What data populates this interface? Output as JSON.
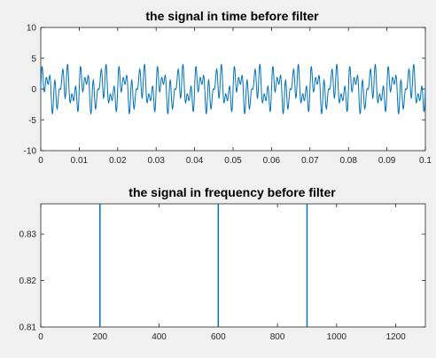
{
  "figure": {
    "background": "#f0f0f0"
  },
  "chart_data": [
    {
      "type": "line",
      "title": "the signal in time before filter",
      "xlabel": "",
      "ylabel": "",
      "xlim": [
        0,
        0.1
      ],
      "ylim": [
        -10,
        10
      ],
      "xticks": [
        0,
        0.01,
        0.02,
        0.03,
        0.04,
        0.05,
        0.06,
        0.07,
        0.08,
        0.09,
        0.1
      ],
      "xtick_labels": [
        "0",
        "0.01",
        "0.02",
        "0.03",
        "0.04",
        "0.05",
        "0.06",
        "0.07",
        "0.08",
        "0.09",
        "0.1"
      ],
      "yticks": [
        -10,
        -5,
        0,
        5,
        10
      ],
      "ytick_labels": [
        "-10",
        "-5",
        "0",
        "5",
        "10"
      ],
      "grid": false,
      "line_color": "#0072bd",
      "series": [
        {
          "components": [
            {
              "amplitude": 1.6,
              "frequency_hz": 200
            },
            {
              "amplitude": 1.6,
              "frequency_hz": 600
            },
            {
              "amplitude": 1.6,
              "frequency_hz": 900
            }
          ]
        }
      ]
    },
    {
      "type": "line",
      "title": "the signal in frequency before filter",
      "xlabel": "",
      "ylabel": "",
      "xlim": [
        0,
        1300
      ],
      "ylim": [
        0.81,
        0.8365
      ],
      "xticks": [
        0,
        200,
        400,
        600,
        800,
        1000,
        1200
      ],
      "xtick_labels": [
        "0",
        "200",
        "400",
        "600",
        "800",
        "1000",
        "1200"
      ],
      "yticks": [
        0.81,
        0.82,
        0.83
      ],
      "ytick_labels": [
        "0.81",
        "0.82",
        "0.83"
      ],
      "grid": false,
      "line_color": "#0072bd",
      "series": [
        {
          "x": [
            200,
            600,
            900
          ]
        }
      ]
    }
  ]
}
